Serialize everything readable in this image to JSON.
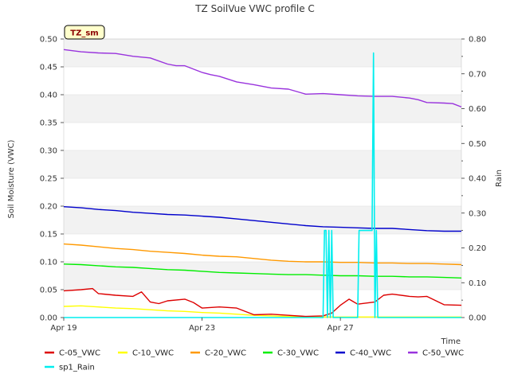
{
  "chart_data": {
    "type": "line",
    "title": "TZ SoilVue VWC profile C",
    "badge": "TZ_sm",
    "xlabel": "Time",
    "ylabel": "Soil Moisture (VWC)",
    "y2label": "Rain",
    "ylim": [
      0,
      0.5
    ],
    "y2lim": [
      0,
      0.8
    ],
    "xlim": [
      "2024-04-19",
      "2024-04-30T12"
    ],
    "x_ticks": [
      {
        "x": "2024-04-19",
        "label": "Apr 19"
      },
      {
        "x": "2024-04-23",
        "label": "Apr 23"
      },
      {
        "x": "2024-04-27",
        "label": "Apr 27"
      }
    ],
    "y_ticks": [
      "0.00",
      "0.05",
      "0.10",
      "0.15",
      "0.20",
      "0.25",
      "0.30",
      "0.35",
      "0.40",
      "0.45",
      "0.50"
    ],
    "y2_ticks": [
      "0.00",
      "0.10",
      "0.20",
      "0.30",
      "0.40",
      "0.50",
      "0.60",
      "0.70",
      "0.80"
    ],
    "grid": true,
    "legend_position": "bottom",
    "series": [
      {
        "name": "C-05_VWC",
        "color": "#dd0000",
        "axis": "left",
        "x": [
          "2024-04-19",
          "2024-04-19T12",
          "2024-04-19T20",
          "2024-04-20",
          "2024-04-20T12",
          "2024-04-21",
          "2024-04-21T06",
          "2024-04-21T12",
          "2024-04-21T18",
          "2024-04-22",
          "2024-04-22T12",
          "2024-04-22T18",
          "2024-04-23",
          "2024-04-23T12",
          "2024-04-24",
          "2024-04-24T12",
          "2024-04-25",
          "2024-04-25T12",
          "2024-04-26",
          "2024-04-26T12",
          "2024-04-26T18",
          "2024-04-27",
          "2024-04-27T06",
          "2024-04-27T12",
          "2024-04-28",
          "2024-04-28T06",
          "2024-04-28T12",
          "2024-04-29",
          "2024-04-29T06",
          "2024-04-29T12",
          "2024-04-30",
          "2024-04-30T12"
        ],
        "values": [
          0.048,
          0.05,
          0.052,
          0.043,
          0.04,
          0.038,
          0.046,
          0.028,
          0.025,
          0.03,
          0.033,
          0.027,
          0.017,
          0.019,
          0.017,
          0.005,
          0.006,
          0.004,
          0.002,
          0.003,
          0.008,
          0.022,
          0.033,
          0.024,
          0.028,
          0.04,
          0.042,
          0.038,
          0.037,
          0.038,
          0.023,
          0.022
        ]
      },
      {
        "name": "C-10_VWC",
        "color": "#ffff00",
        "axis": "left",
        "x": [
          "2024-04-19",
          "2024-04-19T12",
          "2024-04-20",
          "2024-04-20T12",
          "2024-04-21",
          "2024-04-21T12",
          "2024-04-22",
          "2024-04-22T12",
          "2024-04-23",
          "2024-04-23T12",
          "2024-04-24",
          "2024-04-24T12",
          "2024-04-25",
          "2024-04-26",
          "2024-04-27",
          "2024-04-28",
          "2024-04-29",
          "2024-04-30",
          "2024-04-30T12"
        ],
        "values": [
          0.02,
          0.021,
          0.019,
          0.017,
          0.016,
          0.014,
          0.012,
          0.011,
          0.009,
          0.008,
          0.006,
          0.004,
          0.003,
          0.001,
          0.001,
          0.001,
          0.001,
          0.001,
          0.001
        ]
      },
      {
        "name": "C-20_VWC",
        "color": "#ff9900",
        "axis": "left",
        "x": [
          "2024-04-19",
          "2024-04-19T12",
          "2024-04-20",
          "2024-04-20T12",
          "2024-04-21",
          "2024-04-21T12",
          "2024-04-22",
          "2024-04-22T12",
          "2024-04-23",
          "2024-04-23T12",
          "2024-04-24",
          "2024-04-24T12",
          "2024-04-25",
          "2024-04-25T12",
          "2024-04-26",
          "2024-04-26T12",
          "2024-04-27",
          "2024-04-27T12",
          "2024-04-28",
          "2024-04-28T12",
          "2024-04-29",
          "2024-04-29T12",
          "2024-04-30",
          "2024-04-30T12"
        ],
        "values": [
          0.132,
          0.13,
          0.127,
          0.124,
          0.122,
          0.119,
          0.117,
          0.115,
          0.112,
          0.11,
          0.109,
          0.106,
          0.103,
          0.101,
          0.1,
          0.1,
          0.099,
          0.099,
          0.098,
          0.098,
          0.097,
          0.097,
          0.096,
          0.095
        ]
      },
      {
        "name": "C-30_VWC",
        "color": "#00ee00",
        "axis": "left",
        "x": [
          "2024-04-19",
          "2024-04-19T12",
          "2024-04-20",
          "2024-04-20T12",
          "2024-04-21",
          "2024-04-21T12",
          "2024-04-22",
          "2024-04-22T12",
          "2024-04-23",
          "2024-04-23T12",
          "2024-04-24",
          "2024-04-24T12",
          "2024-04-25",
          "2024-04-25T12",
          "2024-04-26",
          "2024-04-26T12",
          "2024-04-27",
          "2024-04-27T12",
          "2024-04-28",
          "2024-04-28T12",
          "2024-04-29",
          "2024-04-29T12",
          "2024-04-30",
          "2024-04-30T12"
        ],
        "values": [
          0.096,
          0.095,
          0.093,
          0.091,
          0.09,
          0.088,
          0.086,
          0.085,
          0.083,
          0.081,
          0.08,
          0.079,
          0.078,
          0.077,
          0.077,
          0.076,
          0.075,
          0.075,
          0.074,
          0.074,
          0.073,
          0.073,
          0.072,
          0.071
        ]
      },
      {
        "name": "C-40_VWC",
        "color": "#0000cc",
        "axis": "left",
        "x": [
          "2024-04-19",
          "2024-04-19T12",
          "2024-04-20",
          "2024-04-20T12",
          "2024-04-21",
          "2024-04-21T12",
          "2024-04-22",
          "2024-04-22T12",
          "2024-04-23",
          "2024-04-23T12",
          "2024-04-24",
          "2024-04-24T12",
          "2024-04-25",
          "2024-04-25T12",
          "2024-04-26",
          "2024-04-26T12",
          "2024-04-27",
          "2024-04-27T12",
          "2024-04-28",
          "2024-04-28T12",
          "2024-04-29",
          "2024-04-29T12",
          "2024-04-30",
          "2024-04-30T12"
        ],
        "values": [
          0.199,
          0.197,
          0.194,
          0.192,
          0.189,
          0.187,
          0.185,
          0.184,
          0.182,
          0.18,
          0.177,
          0.174,
          0.171,
          0.168,
          0.165,
          0.163,
          0.162,
          0.161,
          0.16,
          0.16,
          0.158,
          0.156,
          0.155,
          0.155
        ]
      },
      {
        "name": "C-50_VWC",
        "color": "#9933dd",
        "axis": "left",
        "x": [
          "2024-04-19",
          "2024-04-19T12",
          "2024-04-20",
          "2024-04-20T12",
          "2024-04-21",
          "2024-04-21T12",
          "2024-04-22",
          "2024-04-22T06",
          "2024-04-22T12",
          "2024-04-23",
          "2024-04-23T06",
          "2024-04-23T12",
          "2024-04-24",
          "2024-04-24T12",
          "2024-04-25",
          "2024-04-25T12",
          "2024-04-26",
          "2024-04-26T12",
          "2024-04-27",
          "2024-04-27T12",
          "2024-04-28",
          "2024-04-28T12",
          "2024-04-29",
          "2024-04-29T06",
          "2024-04-29T12",
          "2024-04-30",
          "2024-04-30T06",
          "2024-04-30T12"
        ],
        "values": [
          0.481,
          0.477,
          0.475,
          0.474,
          0.469,
          0.466,
          0.455,
          0.452,
          0.452,
          0.44,
          0.436,
          0.433,
          0.423,
          0.418,
          0.412,
          0.41,
          0.401,
          0.402,
          0.4,
          0.398,
          0.397,
          0.397,
          0.394,
          0.391,
          0.386,
          0.385,
          0.384,
          0.378
        ]
      },
      {
        "name": "sp1_Rain",
        "color": "#00eeee",
        "axis": "right",
        "x": [
          "2024-04-19",
          "2024-04-26T12",
          "2024-04-26T13",
          "2024-04-26T14",
          "2024-04-26T15",
          "2024-04-26T16",
          "2024-04-26T17",
          "2024-04-26T18",
          "2024-04-26T19",
          "2024-04-26T20",
          "2024-04-27",
          "2024-04-27T12",
          "2024-04-27T13",
          "2024-04-27T14",
          "2024-04-27T15",
          "2024-04-27T16",
          "2024-04-27T17",
          "2024-04-27T18",
          "2024-04-27T19",
          "2024-04-27T20",
          "2024-04-27T21",
          "2024-04-27T22",
          "2024-04-27T23",
          "2024-04-28",
          "2024-04-28T01",
          "2024-04-28T02",
          "2024-04-30T12"
        ],
        "values": [
          0.0,
          0.0,
          0.25,
          0.25,
          0.0,
          0.25,
          0.0,
          0.25,
          0.0,
          0.0,
          0.0,
          0.0,
          0.25,
          0.25,
          0.25,
          0.25,
          0.25,
          0.25,
          0.25,
          0.25,
          0.25,
          0.25,
          0.76,
          0.0,
          0.25,
          0.0,
          0.0
        ]
      }
    ]
  }
}
